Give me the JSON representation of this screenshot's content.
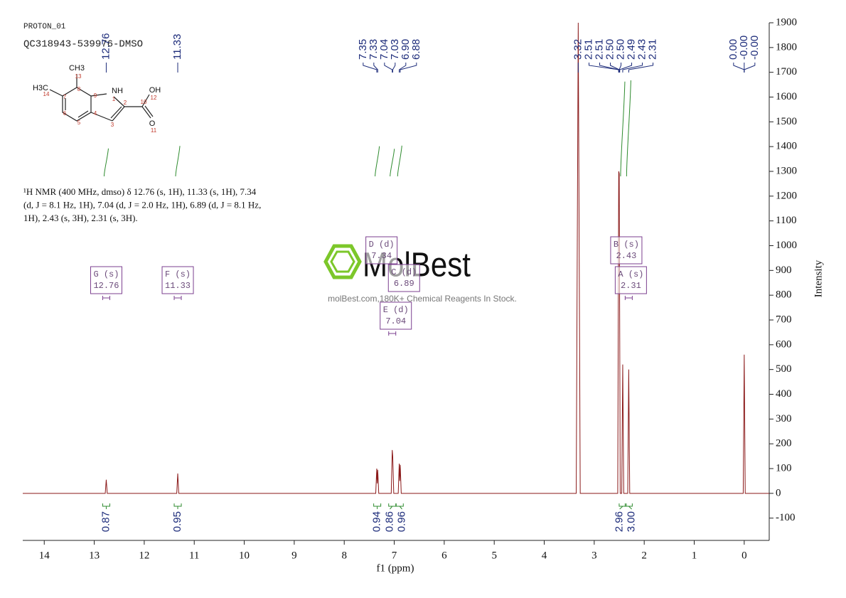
{
  "header": {
    "experiment": "PROTON_01",
    "sample": "QC318943-539976-DMSO"
  },
  "structure": {
    "atoms": [
      "CH3",
      "NH",
      "OH",
      "H3C",
      "O"
    ],
    "numbers": [
      "13",
      "8",
      "9",
      "1",
      "14",
      "7",
      "2",
      "10",
      "12",
      "6",
      "4",
      "3",
      "5",
      "11"
    ]
  },
  "description": [
    "¹H NMR (400 MHz, dmso) δ 12.76 (s, 1H), 11.33 (s, 1H), 7.34",
    "(d, J = 8.1 Hz, 1H), 7.04 (d, J = 2.0 Hz, 1H), 6.89 (d, J = 8.1 Hz,",
    "1H), 2.43 (s, 3H), 2.31 (s, 3H)."
  ],
  "watermark": {
    "logo": "MolBest",
    "tagline": "molBest.com,180K+ Chemical Reagents In Stock."
  },
  "chart_data": {
    "type": "nmr",
    "xlabel": "f1 (ppm)",
    "ylabel": "Intensity",
    "color": "#8b1a1a",
    "x": [
      14.43,
      12.78,
      12.76,
      12.74,
      11.35,
      11.33,
      11.31,
      7.37,
      7.35,
      7.34,
      7.33,
      7.31,
      7.06,
      7.04,
      7.03,
      7.01,
      6.92,
      6.9,
      6.89,
      6.88,
      6.86,
      3.36,
      3.32,
      3.28,
      2.53,
      2.51,
      2.5,
      2.48,
      2.45,
      2.43,
      2.41,
      2.33,
      2.31,
      2.29,
      0.02,
      0.0,
      -0.02,
      -0.5
    ],
    "values": [
      0,
      0,
      55,
      0,
      0,
      80,
      0,
      0,
      100,
      40,
      95,
      0,
      0,
      175,
      150,
      0,
      0,
      120,
      50,
      115,
      0,
      0,
      1900,
      0,
      0,
      1300,
      1290,
      0,
      0,
      520,
      0,
      0,
      500,
      0,
      0,
      560,
      0,
      0
    ],
    "xlim": [
      14.43,
      -0.5
    ],
    "xticks": [
      14,
      13,
      12,
      11,
      10,
      9,
      8,
      7,
      6,
      5,
      4,
      3,
      2,
      1,
      0
    ],
    "ylim": [
      -190,
      1900
    ],
    "yticks": [
      -100,
      0,
      100,
      200,
      300,
      400,
      500,
      600,
      700,
      800,
      900,
      1000,
      1100,
      1200,
      1300,
      1400,
      1500,
      1600,
      1700,
      1800,
      1900
    ],
    "peak_labels": {
      "values": [
        12.76,
        11.33,
        7.35,
        7.33,
        7.04,
        7.03,
        6.9,
        6.88,
        3.32,
        2.51,
        2.51,
        2.5,
        2.5,
        2.49,
        2.43,
        2.31,
        0.0,
        0.0,
        0.0
      ],
      "value_labels": [
        "12.76",
        "11.33",
        "7.35",
        "7.33",
        "7.04",
        "7.03",
        "6.90",
        "6.88",
        "3.32",
        "2.51",
        "2.51",
        "2.50",
        "2.50",
        "2.49",
        "2.43",
        "2.31",
        "0.00",
        "-0.00",
        "-0.00"
      ]
    },
    "integrals": {
      "x": [
        12.76,
        11.33,
        7.34,
        7.04,
        6.89,
        2.43,
        2.31
      ],
      "values": [
        0.87,
        0.95,
        0.94,
        0.86,
        0.96,
        2.96,
        3.0
      ],
      "value_labels": [
        "0.87",
        "0.95",
        "0.94",
        "0.86",
        "0.96",
        "2.96",
        "3.00"
      ]
    },
    "multiplets": {
      "labels": [
        "G (s)",
        "F (s)",
        "D (d)",
        "C (d)",
        "E (d)",
        "B (s)",
        "A (s)"
      ],
      "shifts": [
        12.76,
        11.33,
        7.34,
        6.89,
        7.04,
        2.43,
        2.31
      ]
    }
  }
}
